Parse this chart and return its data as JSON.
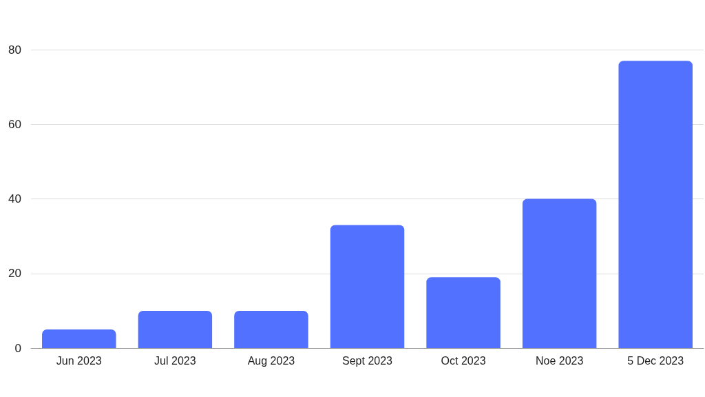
{
  "chart_data": {
    "type": "bar",
    "categories": [
      "Jun 2023",
      "Jul 2023",
      "Aug 2023",
      "Sept 2023",
      "Oct 2023",
      "Noe 2023",
      "5 Dec 2023"
    ],
    "values": [
      5,
      10,
      10,
      33,
      19,
      40,
      77
    ],
    "color": "#5271ff",
    "ylim": [
      0,
      80
    ],
    "yticks": [
      0,
      20,
      40,
      60,
      80
    ],
    "grid": "y"
  }
}
